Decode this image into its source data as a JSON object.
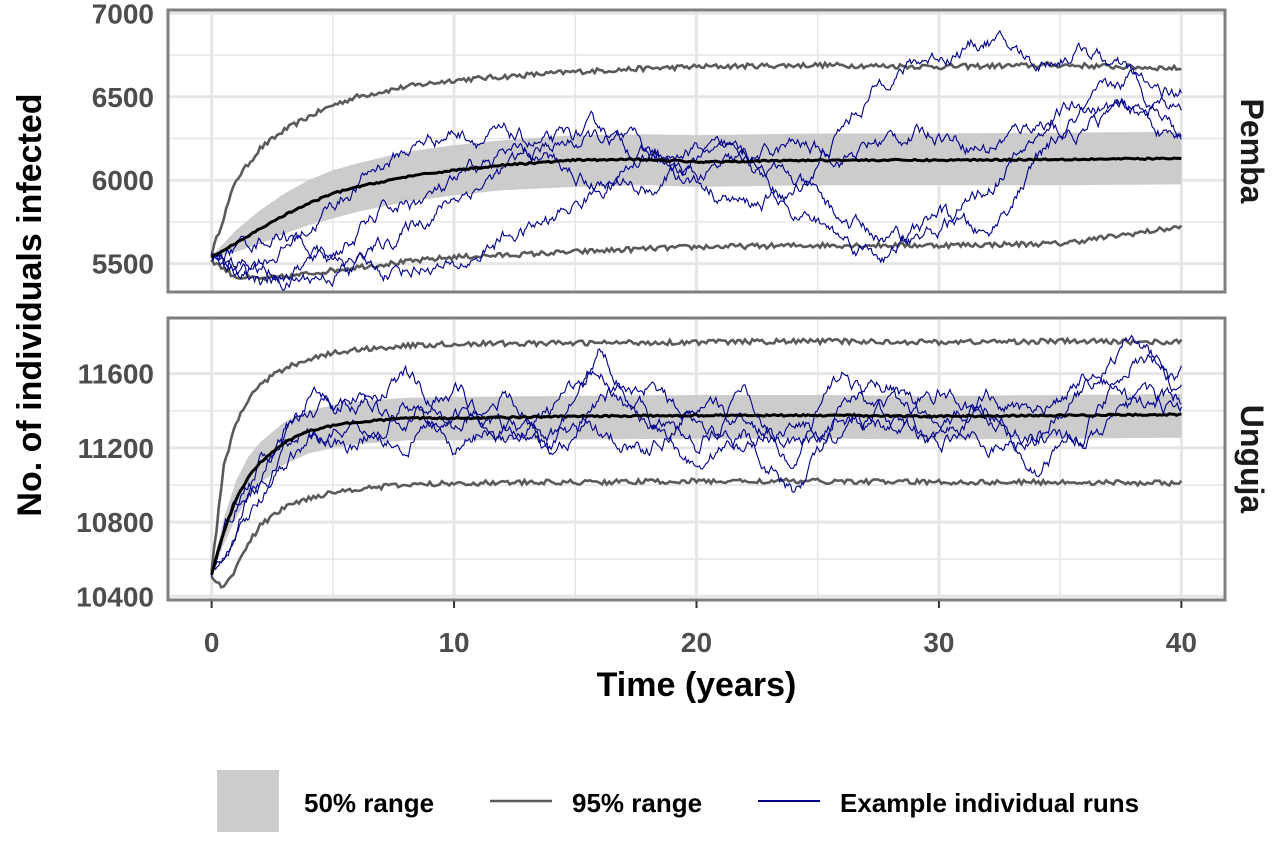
{
  "chart_data": {
    "type": "line",
    "xlabel": "Time (years)",
    "ylabel": "No. of individuals infected",
    "x_ticks": [
      0,
      10,
      20,
      30,
      40
    ],
    "xlim": [
      -1.8,
      41.8
    ],
    "grid": true,
    "legend_position": "bottom",
    "legend": {
      "ribbon_label": "50% range",
      "range_label": "95% range",
      "runs_label": "Example individual runs"
    },
    "colors": {
      "ribbon": "#cccccc",
      "range": "#5a5a5a",
      "median": "#000000",
      "runs": "#00008b",
      "panel_border": "#7f7f7f",
      "grid": "#e6e6e6"
    },
    "panels": [
      {
        "name": "Pemba",
        "ylim": [
          5330,
          7020
        ],
        "y_ticks": [
          5500,
          6000,
          6500,
          7000
        ],
        "x": [
          0,
          1,
          2,
          3,
          4,
          5,
          6,
          8,
          10,
          12,
          15,
          18,
          20,
          25,
          30,
          35,
          40
        ],
        "median": [
          5540,
          5620,
          5710,
          5790,
          5860,
          5920,
          5960,
          6020,
          6060,
          6090,
          6120,
          6125,
          6110,
          6120,
          6120,
          6125,
          6130
        ],
        "q25": [
          5535,
          5570,
          5620,
          5680,
          5730,
          5770,
          5810,
          5870,
          5910,
          5940,
          5960,
          5970,
          5960,
          5970,
          5970,
          5970,
          5975
        ],
        "q75": [
          5545,
          5700,
          5820,
          5920,
          6000,
          6060,
          6100,
          6170,
          6210,
          6240,
          6270,
          6275,
          6270,
          6280,
          6280,
          6285,
          6290
        ],
        "q2_5": [
          5520,
          5420,
          5410,
          5420,
          5440,
          5460,
          5480,
          5510,
          5540,
          5550,
          5570,
          5590,
          5600,
          5610,
          5610,
          5620,
          5720
        ],
        "q97_5": [
          5560,
          6000,
          6190,
          6300,
          6380,
          6450,
          6500,
          6560,
          6600,
          6620,
          6650,
          6670,
          6680,
          6690,
          6680,
          6690,
          6670
        ],
        "runs": [
          {
            "x": [
              0,
              1,
              3,
              5,
              7,
              9,
              10,
              12,
              14,
              16,
              18,
              20,
              22,
              24,
              26,
              28,
              30,
              32,
              34,
              36,
              38,
              40
            ],
            "y": [
              5540,
              5480,
              5600,
              5850,
              6100,
              6250,
              6300,
              6250,
              6200,
              6300,
              6150,
              6000,
              6100,
              6200,
              6150,
              6250,
              6300,
              6200,
              6350,
              6450,
              6400,
              6550
            ]
          },
          {
            "x": [
              0,
              1,
              3,
              5,
              7,
              9,
              10,
              12,
              14,
              16,
              18,
              20,
              22,
              24,
              26,
              28,
              30,
              32,
              34,
              36,
              38,
              40
            ],
            "y": [
              5540,
              5420,
              5380,
              5450,
              5600,
              5800,
              5900,
              6050,
              6200,
              6250,
              6150,
              6000,
              5850,
              5900,
              6300,
              6650,
              6750,
              6850,
              6700,
              6800,
              6600,
              6400
            ]
          },
          {
            "x": [
              0,
              1,
              3,
              5,
              7,
              9,
              10,
              12,
              14,
              16,
              18,
              20,
              22,
              24,
              26,
              28,
              30,
              32,
              34,
              36,
              38,
              40
            ],
            "y": [
              5540,
              5600,
              5700,
              5500,
              5450,
              5500,
              5450,
              5650,
              5750,
              5950,
              6150,
              6200,
              6100,
              5850,
              5650,
              5550,
              5800,
              5650,
              6100,
              6400,
              6600,
              6300
            ]
          },
          {
            "x": [
              0,
              1,
              3,
              5,
              7,
              9,
              10,
              12,
              14,
              16,
              18,
              20,
              22,
              24,
              26,
              28,
              30,
              32,
              34,
              36,
              38,
              40
            ],
            "y": [
              5540,
              5500,
              5450,
              5550,
              5800,
              5900,
              5950,
              6150,
              6100,
              6000,
              5950,
              6100,
              6200,
              6000,
              5750,
              5650,
              5700,
              5950,
              6250,
              6300,
              6450,
              6200
            ]
          }
        ]
      },
      {
        "name": "Unguja",
        "ylim": [
          10380,
          11900
        ],
        "y_ticks": [
          10400,
          10800,
          11200,
          11600
        ],
        "x": [
          0,
          0.5,
          1,
          1.5,
          2,
          3,
          4,
          5,
          6,
          7,
          8,
          10,
          15,
          20,
          25,
          30,
          35,
          40
        ],
        "median": [
          10520,
          10750,
          10920,
          11040,
          11120,
          11230,
          11290,
          11320,
          11340,
          11350,
          11360,
          11360,
          11370,
          11375,
          11375,
          11370,
          11375,
          11380
        ],
        "q25": [
          10515,
          10680,
          10820,
          10930,
          11010,
          11110,
          11170,
          11200,
          11220,
          11230,
          11240,
          11240,
          11245,
          11250,
          11250,
          11245,
          11250,
          11255
        ],
        "q75": [
          10525,
          10820,
          11020,
          11150,
          11230,
          11340,
          11400,
          11430,
          11450,
          11460,
          11470,
          11475,
          11480,
          11485,
          11485,
          11480,
          11485,
          11490
        ],
        "q2_5": [
          10500,
          10450,
          10550,
          10680,
          10780,
          10880,
          10930,
          10960,
          10980,
          10990,
          11000,
          11010,
          11015,
          11020,
          11020,
          11015,
          11015,
          11010
        ],
        "q97_5": [
          10540,
          11100,
          11330,
          11460,
          11540,
          11630,
          11680,
          11710,
          11730,
          11740,
          11750,
          11760,
          11765,
          11770,
          11775,
          11770,
          11775,
          11770
        ],
        "runs": [
          {
            "x": [
              0,
              1,
              2,
              3,
              4,
              6,
              8,
              10,
              12,
              14,
              16,
              18,
              20,
              22,
              24,
              26,
              28,
              30,
              32,
              34,
              36,
              38,
              40
            ],
            "y": [
              10520,
              10850,
              11000,
              11300,
              11450,
              11400,
              11600,
              11300,
              11500,
              11200,
              11700,
              11400,
              11200,
              11500,
              11100,
              11600,
              11300,
              11500,
              11350,
              11250,
              11500,
              11800,
              11500
            ]
          },
          {
            "x": [
              0,
              1,
              2,
              3,
              4,
              6,
              8,
              10,
              12,
              14,
              16,
              18,
              20,
              22,
              24,
              26,
              28,
              30,
              32,
              34,
              36,
              38,
              40
            ],
            "y": [
              10520,
              10800,
              11100,
              11200,
              11350,
              11500,
              11300,
              11550,
              11250,
              11400,
              11650,
              11300,
              11100,
              11300,
              10950,
              11400,
              11550,
              11200,
              11450,
              11100,
              11300,
              11700,
              11600
            ]
          },
          {
            "x": [
              0,
              1,
              2,
              3,
              4,
              6,
              8,
              10,
              12,
              14,
              16,
              18,
              20,
              22,
              24,
              26,
              28,
              30,
              32,
              34,
              36,
              38,
              40
            ],
            "y": [
              10520,
              10700,
              10900,
              11150,
              11300,
              11200,
              11450,
              11200,
              11350,
              11150,
              11450,
              11550,
              11300,
              11200,
              11350,
              11250,
              11450,
              11350,
              11200,
              11300,
              11250,
              11400,
              11450
            ]
          },
          {
            "x": [
              0,
              1,
              2,
              3,
              4,
              6,
              8,
              10,
              12,
              14,
              16,
              18,
              20,
              22,
              24,
              26,
              28,
              30,
              32,
              34,
              36,
              38,
              40
            ],
            "y": [
              10520,
              10900,
              11050,
              11100,
              11250,
              11350,
              11250,
              11400,
              11300,
              11250,
              11300,
              11200,
              11400,
              11350,
              11250,
              11350,
              11300,
              11250,
              11500,
              11350,
              11600,
              11450,
              11400
            ]
          }
        ]
      }
    ]
  }
}
